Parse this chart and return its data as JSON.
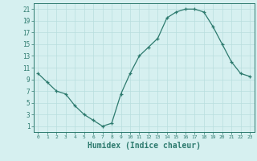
{
  "x": [
    0,
    1,
    2,
    3,
    4,
    5,
    6,
    7,
    8,
    9,
    10,
    11,
    12,
    13,
    14,
    15,
    16,
    17,
    18,
    19,
    20,
    21,
    22,
    23
  ],
  "y": [
    10,
    8.5,
    7.0,
    6.5,
    4.5,
    3.0,
    2.0,
    1.0,
    1.5,
    6.5,
    10.0,
    13.0,
    14.5,
    16.0,
    19.5,
    20.5,
    21.0,
    21.0,
    20.5,
    18.0,
    15.0,
    12.0,
    10.0,
    9.5
  ],
  "line_color": "#2d7a6e",
  "marker": "+",
  "marker_size": 3,
  "background_color": "#d6f0f0",
  "grid_color": "#b8dede",
  "xlabel": "Humidex (Indice chaleur)",
  "xlabel_fontsize": 7,
  "ylabel_ticks": [
    1,
    3,
    5,
    7,
    9,
    11,
    13,
    15,
    17,
    19,
    21
  ],
  "xlim": [
    -0.5,
    23.5
  ],
  "ylim": [
    0,
    22
  ],
  "xtick_labels": [
    "0",
    "1",
    "2",
    "3",
    "4",
    "5",
    "6",
    "7",
    "8",
    "9",
    "10",
    "11",
    "12",
    "13",
    "14",
    "15",
    "16",
    "17",
    "18",
    "19",
    "20",
    "21",
    "22",
    "23"
  ]
}
